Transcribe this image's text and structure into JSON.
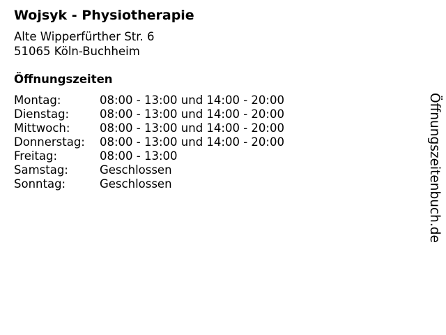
{
  "business": {
    "name": "Wojsyk - Physiotherapie",
    "street": "Alte Wipperfürther Str. 6",
    "city": "51065 Köln-Buchheim"
  },
  "opening_hours": {
    "heading": "Öffnungszeiten",
    "rows": [
      {
        "day": "Montag:",
        "hours": "08:00 - 13:00 und 14:00 - 20:00"
      },
      {
        "day": "Dienstag:",
        "hours": "08:00 - 13:00 und 14:00 - 20:00"
      },
      {
        "day": "Mittwoch:",
        "hours": "08:00 - 13:00 und 14:00 - 20:00"
      },
      {
        "day": "Donnerstag:",
        "hours": "08:00 - 13:00 und 14:00 - 20:00"
      },
      {
        "day": "Freitag:",
        "hours": "08:00 - 13:00"
      },
      {
        "day": "Samstag:",
        "hours": "Geschlossen"
      },
      {
        "day": "Sonntag:",
        "hours": "Geschlossen"
      }
    ]
  },
  "watermark": "Öffnungszeitenbuch.de"
}
